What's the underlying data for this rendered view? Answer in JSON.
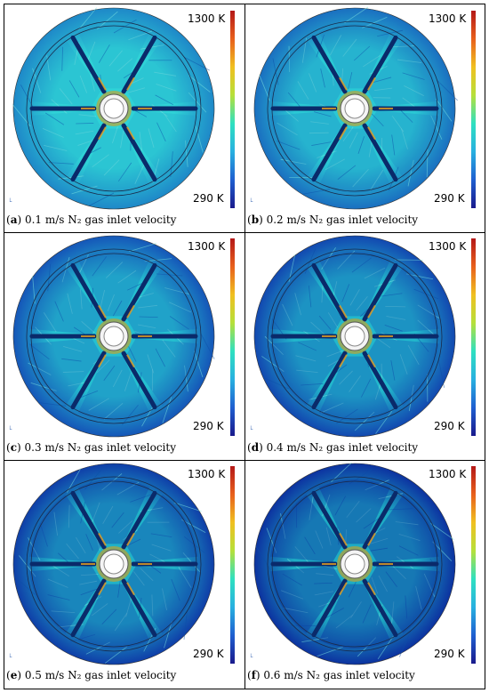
{
  "panels": [
    {
      "letter": "a",
      "caption": "0.1 m/s N₂ gas inlet velocity",
      "t_max": "1300 K",
      "t_min": "290 K",
      "color_low": "#1e88c8",
      "color_high": "#2fd2d6"
    },
    {
      "letter": "b",
      "caption": "0.2 m/s N₂ gas inlet velocity",
      "t_max": "1300 K",
      "t_min": "290 K",
      "color_low": "#1a6fc0",
      "color_high": "#2ac8d4"
    },
    {
      "letter": "c",
      "caption": "0.3 m/s N₂ gas inlet velocity",
      "t_max": "1300 K",
      "t_min": "290 K",
      "color_low": "#1556b8",
      "color_high": "#25c0d0"
    },
    {
      "letter": "d",
      "caption": "0.4 m/s N₂ gas inlet velocity",
      "t_max": "1300 K",
      "t_min": "290 K",
      "color_low": "#1248b0",
      "color_high": "#22b8cc"
    },
    {
      "letter": "e",
      "caption": "0.5 m/s N₂ gas inlet velocity",
      "t_max": "1300 K",
      "t_min": "290 K",
      "color_low": "#0f3ea8",
      "color_high": "#20b2c8"
    },
    {
      "letter": "f",
      "caption": "0.6 m/s N₂ gas inlet velocity",
      "t_max": "1300 K",
      "t_min": "290 K",
      "color_low": "#0c32a0",
      "color_high": "#1eacc4"
    }
  ],
  "colorbar": [
    "#1a1a8c",
    "#1f5fd0",
    "#28b0e0",
    "#2fe0c0",
    "#b6e03a",
    "#f0c020",
    "#e8601c",
    "#b41818"
  ]
}
